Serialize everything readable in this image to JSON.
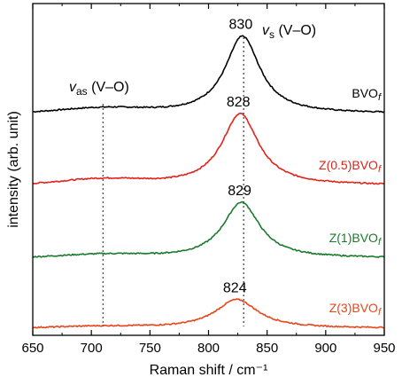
{
  "chart_data": {
    "type": "line",
    "title": "",
    "xlabel": "Raman shift / cm⁻¹",
    "ylabel": "intensity (arb. unit)",
    "xlim": [
      650,
      950
    ],
    "x_ticks": [
      650,
      700,
      750,
      800,
      850,
      900,
      950
    ],
    "x_tick_labels": [
      "650",
      "700",
      "750",
      "800",
      "850",
      "900",
      "950"
    ],
    "y_ticks_shown": false,
    "grid": false,
    "legend": "none (series labeled inline at right)",
    "reference_lines": [
      {
        "x": 710,
        "style": "dotted",
        "label": "vas (V–O)"
      },
      {
        "x": 830,
        "style": "dotted",
        "label": "vs (V–O)"
      }
    ],
    "series": [
      {
        "name": "BVOf",
        "label_main": "BVO",
        "label_sub": "f",
        "color": "#000000",
        "peak_label": "830",
        "peak_x": 829,
        "peak_height": 97,
        "width": 18,
        "baseline": 5,
        "bump_height": 6,
        "offset_index": 0
      },
      {
        "name": "Z(0.5)BVOf",
        "label_main": "Z(0.5)BVO",
        "label_sub": "f",
        "color": "#e2231a",
        "peak_label": "828",
        "peak_x": 827,
        "peak_height": 90,
        "width": 19,
        "baseline": 5,
        "bump_height": 7,
        "offset_index": 1
      },
      {
        "name": "Z(1)BVOf",
        "label_main": "Z(1)BVO",
        "label_sub": "f",
        "color": "#1a7a2e",
        "peak_label": "829",
        "peak_x": 828,
        "peak_height": 70,
        "width": 19,
        "baseline": 5,
        "bump_height": 4,
        "offset_index": 2
      },
      {
        "name": "Z(3)BVOf",
        "label_main": "Z(3)BVO",
        "label_sub": "f",
        "color": "#e8451a",
        "peak_label": "824",
        "peak_x": 824,
        "peak_height": 36,
        "width": 22,
        "baseline": 3,
        "bump_height": 2,
        "offset_index": 3
      }
    ],
    "annotations": {
      "vs_main": "v",
      "vs_sub": "s",
      "vs_rest": " (V–O)",
      "vas_main": "v",
      "vas_sub": "as",
      "vas_rest": " (V–O)"
    }
  }
}
